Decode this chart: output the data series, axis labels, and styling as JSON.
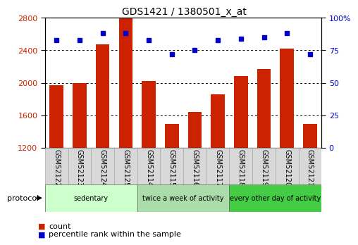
{
  "title": "GDS1421 / 1380501_x_at",
  "samples": [
    "GSM52122",
    "GSM52123",
    "GSM52124",
    "GSM52125",
    "GSM52114",
    "GSM52115",
    "GSM52116",
    "GSM52117",
    "GSM52118",
    "GSM52119",
    "GSM52120",
    "GSM52121"
  ],
  "counts": [
    1970,
    2000,
    2470,
    2800,
    2020,
    1490,
    1640,
    1860,
    2080,
    2170,
    2420,
    1490
  ],
  "percentile_ranks": [
    83,
    83,
    88,
    88,
    83,
    72,
    75,
    83,
    84,
    85,
    88,
    72
  ],
  "ymin": 1200,
  "ymax": 2800,
  "yticks": [
    1200,
    1600,
    2000,
    2400,
    2800
  ],
  "ytick_labels": [
    "1200",
    "1600",
    "2000",
    "2400",
    "2800"
  ],
  "y2min": 0,
  "y2max": 100,
  "y2ticks": [
    0,
    25,
    50,
    75,
    100
  ],
  "y2tick_labels": [
    "0",
    "25",
    "50",
    "75",
    "100%"
  ],
  "bar_color": "#cc2200",
  "dot_color": "#0000cc",
  "bg_color": "#ffffff",
  "protocol_groups": [
    {
      "label": "sedentary",
      "start": 0,
      "end": 3,
      "color": "#ccffcc"
    },
    {
      "label": "twice a week of activity",
      "start": 4,
      "end": 7,
      "color": "#aaddaa"
    },
    {
      "label": "every other day of activity",
      "start": 8,
      "end": 11,
      "color": "#44cc44"
    }
  ],
  "protocol_label": "protocol",
  "legend_count_label": "count",
  "legend_pct_label": "percentile rank within the sample",
  "tick_label_color_left": "#cc2200",
  "tick_label_color_right": "#0000cc",
  "sample_cell_color": "#d8d8d8",
  "sample_cell_edge": "#aaaaaa"
}
